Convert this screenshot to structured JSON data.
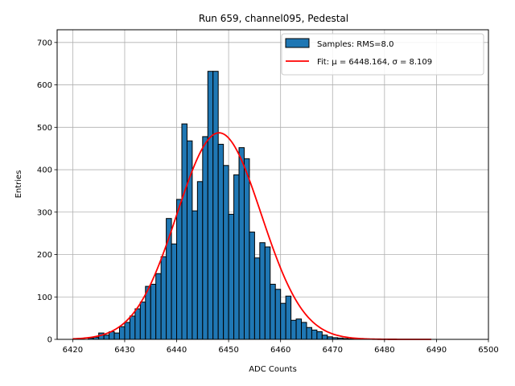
{
  "chart_data": {
    "type": "bar",
    "title": "Run 659, channel095, Pedestal",
    "xlabel": "ADC Counts",
    "ylabel": "Entries",
    "xlim": [
      6417,
      6500
    ],
    "ylim": [
      0,
      730
    ],
    "xticks": [
      6420,
      6430,
      6440,
      6450,
      6460,
      6470,
      6480,
      6490,
      6500
    ],
    "yticks": [
      0,
      100,
      200,
      300,
      400,
      500,
      600,
      700
    ],
    "grid": true,
    "legend_position": "top-right",
    "bar_color": "#1f77b4",
    "fit_color": "#ff0000",
    "bins": {
      "start": 6420,
      "width": 1,
      "values": [
        0,
        0,
        0,
        3,
        5,
        15,
        10,
        18,
        15,
        30,
        40,
        55,
        72,
        88,
        125,
        130,
        155,
        195,
        285,
        225,
        330,
        508,
        468,
        303,
        372,
        478,
        632,
        632,
        460,
        410,
        295,
        388,
        452,
        426,
        253,
        192,
        228,
        218,
        130,
        118,
        85,
        102,
        45,
        48,
        40,
        28,
        22,
        18,
        10,
        6,
        4,
        3,
        2,
        1,
        1
      ]
    },
    "series": [
      {
        "name": "Samples: RMS=8.0",
        "kind": "histogram"
      },
      {
        "name": "Fit: μ = 6448.164, σ = 8.109",
        "kind": "line",
        "mu": 6448.164,
        "sigma": 8.109,
        "amplitude": 487,
        "x_range": [
          6420,
          6489
        ]
      }
    ]
  }
}
